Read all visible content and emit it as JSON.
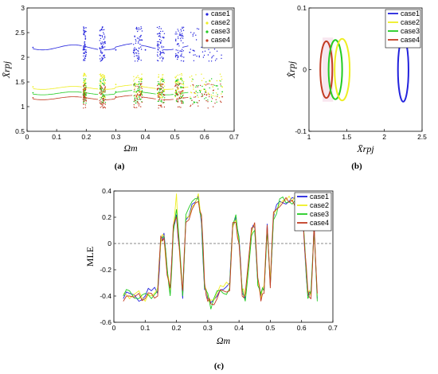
{
  "figure": {
    "captions": [
      "(a)",
      "(b)",
      "(c)"
    ]
  },
  "colors": {
    "case1": "#2222dd",
    "case2": "#eeee22",
    "case3": "#22cc22",
    "case4": "#c23b22"
  },
  "chart_data": [
    {
      "id": "a",
      "type": "scatter",
      "xlabel": "Ωm",
      "ylabel": "X̄rpj",
      "xlim": [
        0,
        0.7
      ],
      "ylim": [
        0.5,
        3
      ],
      "xticks": [
        "0",
        "0.1",
        "0.2",
        "0.3",
        "0.4",
        "0.5",
        "0.6",
        "0.7"
      ],
      "yticks": [
        "0.5",
        "1",
        "1.5",
        "2",
        "2.5",
        "3"
      ],
      "legend_position": "top-right",
      "series": [
        {
          "name": "case1",
          "base": 2.2,
          "x": [
            0.02,
            0.19,
            0.2,
            0.25,
            0.26,
            0.3,
            0.36,
            0.38,
            0.4,
            0.45,
            0.46,
            0.51,
            0.52,
            0.55,
            0.6,
            0.65,
            0.66
          ],
          "y": [
            2.2,
            2.15,
            2.1,
            2.1,
            2.3,
            2.15,
            2.1,
            2.35,
            2.15,
            2.05,
            2.1,
            2.0,
            2.45,
            2.1,
            2.2,
            2.25,
            2.3
          ]
        },
        {
          "name": "case2",
          "base": 1.38,
          "x": [
            0.02,
            0.19,
            0.25,
            0.26,
            0.3,
            0.37,
            0.38,
            0.45,
            0.51,
            0.52,
            0.6,
            0.66
          ],
          "y": [
            1.4,
            1.35,
            1.5,
            1.6,
            1.45,
            1.45,
            1.55,
            1.5,
            1.35,
            1.55,
            1.45,
            1.4
          ]
        },
        {
          "name": "case3",
          "base": 1.27,
          "x": [
            0.02,
            0.19,
            0.25,
            0.26,
            0.3,
            0.37,
            0.38,
            0.45,
            0.51,
            0.52,
            0.6,
            0.66
          ],
          "y": [
            1.28,
            1.25,
            1.35,
            1.45,
            1.3,
            1.3,
            1.4,
            1.35,
            1.25,
            1.4,
            1.35,
            1.3
          ]
        },
        {
          "name": "case4",
          "base": 1.17,
          "x": [
            0.02,
            0.19,
            0.25,
            0.26,
            0.3,
            0.37,
            0.38,
            0.45,
            0.51,
            0.52,
            0.6,
            0.66
          ],
          "y": [
            1.18,
            1.15,
            1.25,
            1.3,
            1.2,
            1.2,
            1.3,
            1.25,
            1.1,
            1.3,
            1.25,
            1.2
          ]
        }
      ]
    },
    {
      "id": "b",
      "type": "line",
      "xlabel": "X̄rpj",
      "ylabel": "X̄̇rpj",
      "xlim": [
        1,
        2.5
      ],
      "ylim": [
        -0.1,
        0.1
      ],
      "xticks": [
        "1",
        "1.5",
        "2",
        "2.5"
      ],
      "yticks": [
        "-0.1",
        "0",
        "0.1"
      ],
      "legend_position": "top-right",
      "series": [
        {
          "name": "case1",
          "center": 2.25,
          "rx": 0.07,
          "ry": 0.052
        },
        {
          "name": "case2",
          "center": 1.44,
          "rx": 0.1,
          "ry": 0.05
        },
        {
          "name": "case3",
          "center": 1.35,
          "rx": 0.09,
          "ry": 0.048
        },
        {
          "name": "case4",
          "center": 1.23,
          "rx": 0.08,
          "ry": 0.046
        }
      ]
    },
    {
      "id": "c",
      "type": "line",
      "xlabel": "Ωm",
      "ylabel": "MLE",
      "xlim": [
        0,
        0.7
      ],
      "ylim": [
        -0.6,
        0.4
      ],
      "xticks": [
        "0",
        "0.1",
        "0.2",
        "0.3",
        "0.4",
        "0.5",
        "0.6",
        "0.7"
      ],
      "yticks": [
        "-0.6",
        "-0.4",
        "-0.2",
        "0",
        "0.2",
        "0.4"
      ],
      "legend_position": "top-right",
      "zero_line": 0,
      "series": [
        {
          "name": "case1",
          "x": [
            0.03,
            0.05,
            0.08,
            0.1,
            0.12,
            0.14,
            0.15,
            0.16,
            0.17,
            0.18,
            0.19,
            0.2,
            0.21,
            0.22,
            0.23,
            0.25,
            0.27,
            0.28,
            0.29,
            0.3,
            0.31,
            0.33,
            0.35,
            0.37,
            0.38,
            0.39,
            0.4,
            0.41,
            0.42,
            0.44,
            0.45,
            0.46,
            0.47,
            0.48,
            0.49,
            0.5,
            0.51,
            0.53,
            0.55,
            0.57,
            0.59,
            0.6,
            0.61,
            0.62,
            0.63,
            0.64,
            0.65
          ],
          "y": [
            -0.42,
            -0.38,
            -0.44,
            -0.4,
            -0.36,
            -0.38,
            0.02,
            0.08,
            -0.2,
            -0.38,
            0.1,
            0.22,
            -0.05,
            -0.42,
            0.18,
            0.3,
            0.36,
            0.15,
            -0.35,
            -0.42,
            -0.45,
            -0.4,
            -0.35,
            -0.3,
            0.15,
            0.2,
            0.05,
            -0.38,
            -0.42,
            0.1,
            0.12,
            -0.3,
            -0.4,
            -0.35,
            0.15,
            -0.3,
            0.2,
            0.32,
            0.3,
            0.35,
            0.33,
            0.28,
            -0.05,
            -0.4,
            -0.38,
            0.15,
            -0.42
          ]
        },
        {
          "name": "case2",
          "x": [
            0.03,
            0.05,
            0.08,
            0.1,
            0.12,
            0.14,
            0.15,
            0.16,
            0.17,
            0.18,
            0.19,
            0.2,
            0.21,
            0.22,
            0.23,
            0.25,
            0.27,
            0.28,
            0.29,
            0.3,
            0.31,
            0.33,
            0.35,
            0.37,
            0.38,
            0.39,
            0.4,
            0.41,
            0.42,
            0.44,
            0.45,
            0.46,
            0.47,
            0.48,
            0.49,
            0.5,
            0.51,
            0.53,
            0.55,
            0.57,
            0.59,
            0.6,
            0.61,
            0.62,
            0.63,
            0.64,
            0.65
          ],
          "y": [
            -0.38,
            -0.42,
            -0.36,
            -0.44,
            -0.4,
            -0.34,
            0.0,
            0.06,
            -0.22,
            -0.36,
            0.12,
            0.38,
            -0.08,
            -0.38,
            0.2,
            0.28,
            0.38,
            0.18,
            -0.32,
            -0.4,
            -0.43,
            -0.38,
            -0.33,
            -0.32,
            0.12,
            0.18,
            0.02,
            -0.36,
            -0.4,
            0.08,
            0.14,
            -0.28,
            -0.42,
            -0.32,
            0.12,
            -0.28,
            0.22,
            0.3,
            0.33,
            0.32,
            0.35,
            0.3,
            -0.02,
            -0.38,
            -0.4,
            0.12,
            -0.4
          ]
        },
        {
          "name": "case3",
          "x": [
            0.03,
            0.05,
            0.08,
            0.1,
            0.12,
            0.14,
            0.15,
            0.16,
            0.17,
            0.18,
            0.19,
            0.2,
            0.21,
            0.22,
            0.23,
            0.25,
            0.27,
            0.28,
            0.29,
            0.3,
            0.31,
            0.33,
            0.35,
            0.37,
            0.38,
            0.39,
            0.4,
            0.41,
            0.42,
            0.44,
            0.45,
            0.46,
            0.47,
            0.48,
            0.49,
            0.5,
            0.51,
            0.53,
            0.55,
            0.57,
            0.59,
            0.6,
            0.61,
            0.62,
            0.63,
            0.64,
            0.65
          ],
          "y": [
            -0.4,
            -0.36,
            -0.42,
            -0.38,
            -0.42,
            -0.36,
            0.04,
            0.05,
            -0.18,
            -0.4,
            0.08,
            0.26,
            -0.02,
            -0.4,
            0.22,
            0.32,
            0.34,
            0.2,
            -0.34,
            -0.38,
            -0.5,
            -0.36,
            -0.38,
            -0.34,
            0.14,
            0.22,
            0.04,
            -0.34,
            -0.44,
            0.06,
            0.1,
            -0.32,
            -0.38,
            -0.36,
            0.1,
            -0.32,
            0.18,
            0.34,
            0.31,
            0.3,
            0.34,
            0.27,
            0.0,
            -0.42,
            -0.36,
            0.1,
            -0.44
          ]
        },
        {
          "name": "case4",
          "x": [
            0.03,
            0.05,
            0.08,
            0.1,
            0.12,
            0.14,
            0.15,
            0.16,
            0.17,
            0.18,
            0.19,
            0.2,
            0.21,
            0.22,
            0.23,
            0.25,
            0.27,
            0.28,
            0.29,
            0.3,
            0.31,
            0.33,
            0.35,
            0.37,
            0.38,
            0.39,
            0.4,
            0.41,
            0.42,
            0.44,
            0.45,
            0.46,
            0.47,
            0.48,
            0.49,
            0.5,
            0.51,
            0.53,
            0.55,
            0.57,
            0.59,
            0.6,
            0.61,
            0.62,
            0.63,
            0.64,
            0.65
          ],
          "y": [
            -0.44,
            -0.4,
            -0.38,
            -0.42,
            -0.38,
            -0.4,
            0.06,
            0.04,
            -0.24,
            -0.34,
            0.14,
            0.2,
            -0.06,
            -0.36,
            0.16,
            0.26,
            0.32,
            0.22,
            -0.3,
            -0.44,
            -0.46,
            -0.42,
            -0.36,
            -0.36,
            0.16,
            0.16,
            0.0,
            -0.4,
            -0.38,
            0.12,
            0.16,
            -0.26,
            -0.44,
            -0.38,
            0.14,
            -0.34,
            0.24,
            0.28,
            0.35,
            0.33,
            0.3,
            0.32,
            -0.04,
            -0.36,
            -0.42,
            0.14,
            -0.38
          ]
        }
      ]
    }
  ]
}
